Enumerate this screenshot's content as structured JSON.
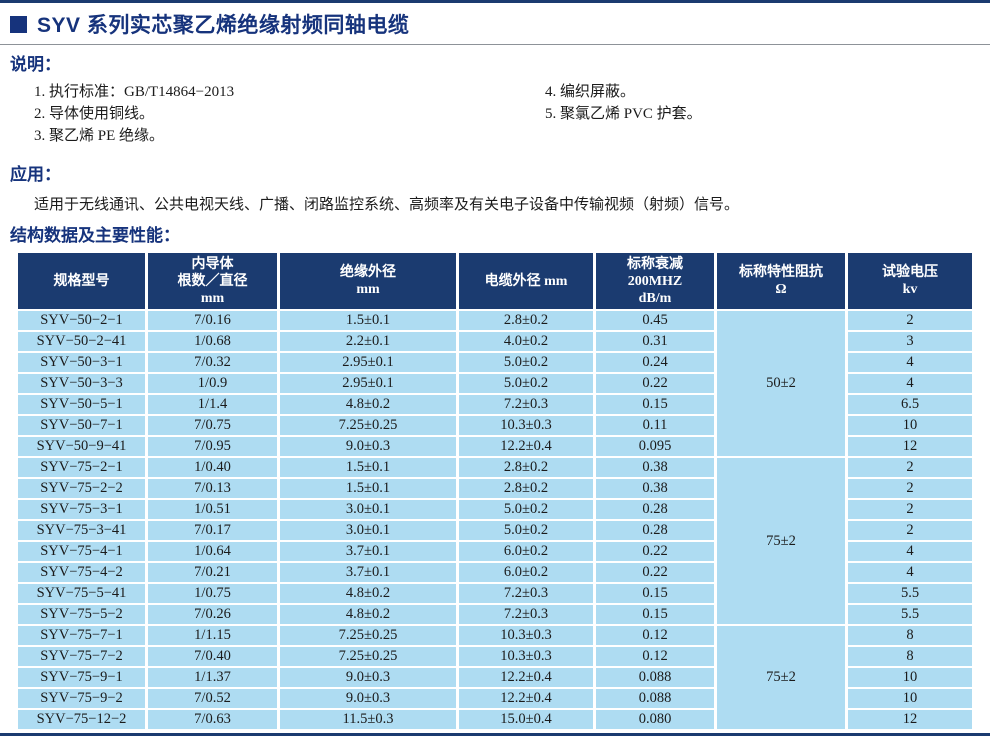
{
  "title": {
    "text": "SYV 系列实芯聚乙烯绝缘射频同轴电缆"
  },
  "notes": {
    "heading": "说明：",
    "left": [
      "1. 执行标准：GB/T14864−2013",
      "2. 导体使用铜线。",
      "3. 聚乙烯 PE 绝缘。"
    ],
    "right": [
      "4. 编织屏蔽。",
      "5. 聚氯乙烯 PVC 护套。"
    ]
  },
  "application": {
    "heading": "应用：",
    "text": "适用于无线通讯、公共电视天线、广播、闭路监控系统、高频率及有关电子设备中传输视频（射频）信号。"
  },
  "table_section": {
    "heading": "结构数据及主要性能："
  },
  "table": {
    "headers": [
      [
        "规格型号"
      ],
      [
        "内导体",
        "根数／直径",
        "mm"
      ],
      [
        "绝缘外径",
        "mm"
      ],
      [
        "电缆外径 mm"
      ],
      [
        "标称衰减",
        "200MHZ",
        "dB/m"
      ],
      [
        "标称特性阻抗",
        "Ω"
      ],
      [
        "试验电压",
        "kv"
      ]
    ],
    "column_keys": [
      "model",
      "inner_conductor",
      "insulation_od",
      "cable_od",
      "attenuation",
      "impedance",
      "test_voltage"
    ],
    "groups": [
      {
        "impedance": "50±2",
        "rows": [
          [
            "SYV−50−2−1",
            "7/0.16",
            "1.5±0.1",
            "2.8±0.2",
            "0.45",
            "2"
          ],
          [
            "SYV−50−2−41",
            "1/0.68",
            "2.2±0.1",
            "4.0±0.2",
            "0.31",
            "3"
          ],
          [
            "SYV−50−3−1",
            "7/0.32",
            "2.95±0.1",
            "5.0±0.2",
            "0.24",
            "4"
          ],
          [
            "SYV−50−3−3",
            "1/0.9",
            "2.95±0.1",
            "5.0±0.2",
            "0.22",
            "4"
          ],
          [
            "SYV−50−5−1",
            "1/1.4",
            "4.8±0.2",
            "7.2±0.3",
            "0.15",
            "6.5"
          ],
          [
            "SYV−50−7−1",
            "7/0.75",
            "7.25±0.25",
            "10.3±0.3",
            "0.11",
            "10"
          ],
          [
            "SYV−50−9−41",
            "7/0.95",
            "9.0±0.3",
            "12.2±0.4",
            "0.095",
            "12"
          ]
        ]
      },
      {
        "impedance": "75±2",
        "rows": [
          [
            "SYV−75−2−1",
            "1/0.40",
            "1.5±0.1",
            "2.8±0.2",
            "0.38",
            "2"
          ],
          [
            "SYV−75−2−2",
            "7/0.13",
            "1.5±0.1",
            "2.8±0.2",
            "0.38",
            "2"
          ],
          [
            "SYV−75−3−1",
            "1/0.51",
            "3.0±0.1",
            "5.0±0.2",
            "0.28",
            "2"
          ],
          [
            "SYV−75−3−41",
            "7/0.17",
            "3.0±0.1",
            "5.0±0.2",
            "0.28",
            "2"
          ],
          [
            "SYV−75−4−1",
            "1/0.64",
            "3.7±0.1",
            "6.0±0.2",
            "0.22",
            "4"
          ],
          [
            "SYV−75−4−2",
            "7/0.21",
            "3.7±0.1",
            "6.0±0.2",
            "0.22",
            "4"
          ],
          [
            "SYV−75−5−41",
            "1/0.75",
            "4.8±0.2",
            "7.2±0.3",
            "0.15",
            "5.5"
          ],
          [
            "SYV−75−5−2",
            "7/0.26",
            "4.8±0.2",
            "7.2±0.3",
            "0.15",
            "5.5"
          ]
        ]
      },
      {
        "impedance": "75±2",
        "rows": [
          [
            "SYV−75−7−1",
            "1/1.15",
            "7.25±0.25",
            "10.3±0.3",
            "0.12",
            "8"
          ],
          [
            "SYV−75−7−2",
            "7/0.40",
            "7.25±0.25",
            "10.3±0.3",
            "0.12",
            "8"
          ],
          [
            "SYV−75−9−1",
            "1/1.37",
            "9.0±0.3",
            "12.2±0.4",
            "0.088",
            "10"
          ],
          [
            "SYV−75−9−2",
            "7/0.52",
            "9.0±0.3",
            "12.2±0.4",
            "0.088",
            "10"
          ],
          [
            "SYV−75−12−2",
            "7/0.63",
            "11.5±0.3",
            "15.0±0.4",
            "0.080",
            "12"
          ]
        ]
      }
    ]
  },
  "colors": {
    "accent_navy": "#16337C",
    "table_header_bg": "#1B3B70",
    "table_row_bg": "#AEDCF2",
    "divider_gray": "#8D9298"
  }
}
